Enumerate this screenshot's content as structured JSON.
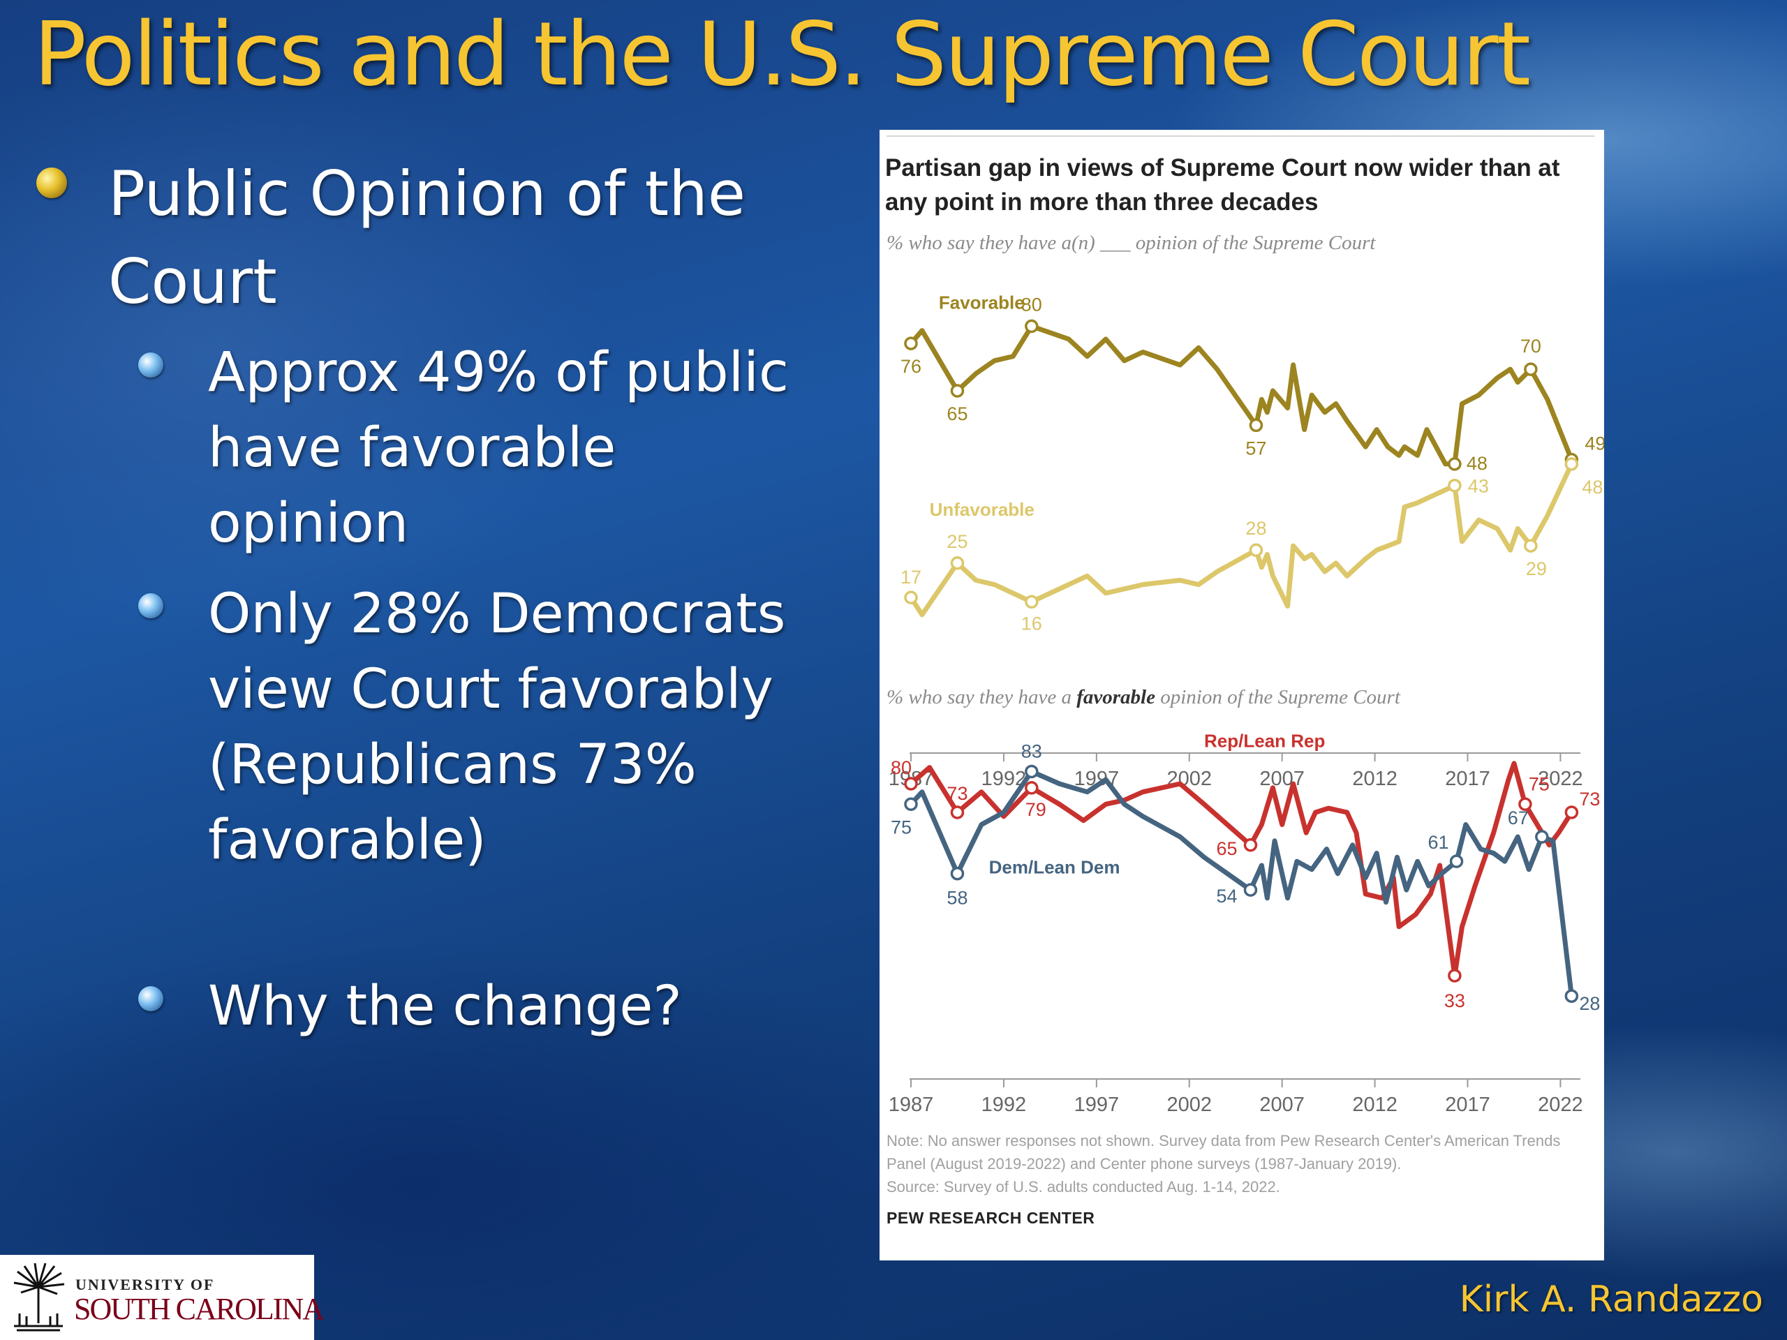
{
  "slide": {
    "title": "Politics and the U.S. Supreme Court",
    "bullets": {
      "main": "Public Opinion of the Court",
      "sub": [
        "Approx 49% of public have favorable opinion",
        "Only 28% Democrats view Court favorably (Republicans 73% favorable)",
        "Why the change?"
      ]
    },
    "author": "Kirk A. Randazzo",
    "logo": {
      "line1": "UNIVERSITY OF",
      "line2": "SOUTH CAROLINA"
    }
  },
  "colors": {
    "title": "#f7c531",
    "favorable": "#9c8420",
    "unfavorable": "#dcc76a",
    "rep": "#c8322e",
    "dem": "#456480"
  },
  "figure": {
    "title": "Partisan gap in views of Supreme Court now wider than at any point in more than three decades",
    "note": "Note: No answer responses not shown. Survey data from Pew Research Center's American Trends Panel (August 2019-2022) and Center phone surveys (1987-January 2019).",
    "source": "Source: Survey of U.S. adults conducted Aug. 1-14, 2022.",
    "org": "PEW RESEARCH CENTER"
  },
  "chart_data": [
    {
      "type": "line",
      "title": "Partisan gap in views of Supreme Court now wider than at any point in more than three decades",
      "subtitle": "% who say they have a(n) ___ opinion of the Supreme Court",
      "x_ticks": [
        "1987",
        "1992",
        "1997",
        "2002",
        "2007",
        "2012",
        "2017",
        "2022"
      ],
      "xlim": [
        1987,
        2023
      ],
      "ylim": [
        0,
        100
      ],
      "series": [
        {
          "name": "Favorable",
          "color": "#9c8420",
          "points": [
            [
              1987,
              76
            ],
            [
              1987.6,
              79
            ],
            [
              1989.5,
              65
            ],
            [
              1990.5,
              69
            ],
            [
              1991.5,
              72
            ],
            [
              1992.5,
              73
            ],
            [
              1993.5,
              80
            ],
            [
              1995.5,
              77
            ],
            [
              1996.5,
              73
            ],
            [
              1997.5,
              77
            ],
            [
              1998.5,
              72
            ],
            [
              1999.5,
              74
            ],
            [
              2001.5,
              71
            ],
            [
              2002.5,
              75
            ],
            [
              2003.5,
              70
            ],
            [
              2005.6,
              57
            ],
            [
              2005.9,
              63
            ],
            [
              2006.2,
              60
            ],
            [
              2006.5,
              65
            ],
            [
              2007.3,
              61
            ],
            [
              2007.6,
              71
            ],
            [
              2008.2,
              56
            ],
            [
              2008.6,
              64
            ],
            [
              2009.3,
              60
            ],
            [
              2009.9,
              62
            ],
            [
              2010.5,
              58
            ],
            [
              2011.5,
              52
            ],
            [
              2012.1,
              56
            ],
            [
              2012.7,
              52
            ],
            [
              2013.3,
              50
            ],
            [
              2013.6,
              52
            ],
            [
              2014.3,
              50
            ],
            [
              2014.8,
              56
            ],
            [
              2015.8,
              48
            ],
            [
              2016.3,
              48
            ],
            [
              2016.7,
              62
            ],
            [
              2017.6,
              64
            ],
            [
              2018.6,
              68
            ],
            [
              2019.3,
              70
            ],
            [
              2019.7,
              67
            ],
            [
              2020.4,
              70
            ],
            [
              2021.3,
              63
            ],
            [
              2022.6,
              49
            ]
          ],
          "labels": [
            {
              "x": 1987,
              "y": 76,
              "text": "76"
            },
            {
              "x": 1989.5,
              "y": 65,
              "text": "65"
            },
            {
              "x": 1993.5,
              "y": 80,
              "text": "80"
            },
            {
              "x": 2005.6,
              "y": 57,
              "text": "57"
            },
            {
              "x": 2016.3,
              "y": 48,
              "text": "48"
            },
            {
              "x": 2020.4,
              "y": 70,
              "text": "70"
            },
            {
              "x": 2022.6,
              "y": 49,
              "text": "49"
            }
          ]
        },
        {
          "name": "Unfavorable",
          "color": "#dcc76a",
          "points": [
            [
              1987,
              17
            ],
            [
              1987.6,
              13
            ],
            [
              1989.5,
              25
            ],
            [
              1990.5,
              21
            ],
            [
              1991.5,
              20
            ],
            [
              1992.5,
              18
            ],
            [
              1993.5,
              16
            ],
            [
              1995.5,
              20
            ],
            [
              1996.5,
              22
            ],
            [
              1997.5,
              18
            ],
            [
              1998.5,
              19
            ],
            [
              1999.5,
              20
            ],
            [
              2001.5,
              21
            ],
            [
              2002.5,
              20
            ],
            [
              2003.5,
              23
            ],
            [
              2005.6,
              28
            ],
            [
              2005.9,
              24
            ],
            [
              2006.2,
              27
            ],
            [
              2006.5,
              22
            ],
            [
              2007.3,
              15
            ],
            [
              2007.6,
              29
            ],
            [
              2008.2,
              26
            ],
            [
              2008.6,
              27
            ],
            [
              2009.3,
              23
            ],
            [
              2009.9,
              25
            ],
            [
              2010.5,
              22
            ],
            [
              2011.5,
              26
            ],
            [
              2012.1,
              28
            ],
            [
              2012.7,
              29
            ],
            [
              2013.3,
              30
            ],
            [
              2013.6,
              38
            ],
            [
              2014.3,
              39
            ],
            [
              2014.8,
              40
            ],
            [
              2015.8,
              42
            ],
            [
              2016.3,
              43
            ],
            [
              2016.7,
              30
            ],
            [
              2017.6,
              35
            ],
            [
              2018.6,
              33
            ],
            [
              2019.3,
              28
            ],
            [
              2019.7,
              33
            ],
            [
              2020.4,
              29
            ],
            [
              2021.3,
              36
            ],
            [
              2022.6,
              48
            ]
          ],
          "labels": [
            {
              "x": 1987,
              "y": 17,
              "text": "17"
            },
            {
              "x": 1989.5,
              "y": 25,
              "text": "25"
            },
            {
              "x": 1993.5,
              "y": 16,
              "text": "16"
            },
            {
              "x": 2005.6,
              "y": 28,
              "text": "28"
            },
            {
              "x": 2016.3,
              "y": 43,
              "text": "43"
            },
            {
              "x": 2020.4,
              "y": 29,
              "text": "29"
            },
            {
              "x": 2022.6,
              "y": 48,
              "text": "48"
            }
          ]
        }
      ],
      "series_labels": [
        {
          "text": "Favorable",
          "x": 1988.5,
          "y": 84,
          "series": 0
        },
        {
          "text": "Unfavorable",
          "x": 1988,
          "y": 36,
          "series": 1
        }
      ]
    },
    {
      "type": "line",
      "subtitle_pre": "% who say they have a ",
      "subtitle_bold": "favorable",
      "subtitle_post": " opinion of the Supreme Court",
      "x_ticks": [
        "1987",
        "1992",
        "1997",
        "2002",
        "2007",
        "2012",
        "2017",
        "2022"
      ],
      "xlim": [
        1987,
        2023
      ],
      "ylim": [
        0,
        100
      ],
      "series": [
        {
          "name": "Rep/Lean Rep",
          "color": "#c8322e",
          "points": [
            [
              1987,
              80
            ],
            [
              1988,
              84
            ],
            [
              1989.5,
              73
            ],
            [
              1990.8,
              78
            ],
            [
              1992,
              72
            ],
            [
              1993.5,
              79
            ],
            [
              1995,
              75
            ],
            [
              1996.3,
              71
            ],
            [
              1997.5,
              75
            ],
            [
              1998.5,
              76
            ],
            [
              1999.5,
              78
            ],
            [
              2001.5,
              80
            ],
            [
              2002.8,
              75
            ],
            [
              2005.3,
              65
            ],
            [
              2005.9,
              70
            ],
            [
              2006.5,
              79
            ],
            [
              2007,
              70
            ],
            [
              2007.6,
              80
            ],
            [
              2008.3,
              68
            ],
            [
              2008.8,
              73
            ],
            [
              2009.5,
              74
            ],
            [
              2010.5,
              73
            ],
            [
              2011,
              68
            ],
            [
              2011.5,
              53
            ],
            [
              2012.4,
              52
            ],
            [
              2013,
              57
            ],
            [
              2013.3,
              45
            ],
            [
              2014.2,
              48
            ],
            [
              2015,
              53
            ],
            [
              2015.5,
              60
            ],
            [
              2016.3,
              33
            ],
            [
              2016.7,
              45
            ],
            [
              2017.4,
              55
            ],
            [
              2018.4,
              68
            ],
            [
              2019.2,
              81
            ],
            [
              2019.5,
              85
            ],
            [
              2020.1,
              75
            ],
            [
              2021.4,
              65
            ],
            [
              2021.9,
              68
            ],
            [
              2022.6,
              73
            ]
          ],
          "labels": [
            {
              "x": 1987,
              "y": 80,
              "text": "80"
            },
            {
              "x": 1989.5,
              "y": 73,
              "text": "73"
            },
            {
              "x": 1993.5,
              "y": 79,
              "text": "79"
            },
            {
              "x": 2005.3,
              "y": 65,
              "text": "65"
            },
            {
              "x": 2016.3,
              "y": 33,
              "text": "33"
            },
            {
              "x": 2020.1,
              "y": 75,
              "text": "75"
            },
            {
              "x": 2022.6,
              "y": 73,
              "text": "73"
            }
          ]
        },
        {
          "name": "Dem/Lean Dem",
          "color": "#456480",
          "points": [
            [
              1987,
              75
            ],
            [
              1987.6,
              78
            ],
            [
              1989.5,
              58
            ],
            [
              1990.8,
              70
            ],
            [
              1992,
              73
            ],
            [
              1993.5,
              83
            ],
            [
              1995,
              80
            ],
            [
              1996.5,
              78
            ],
            [
              1997.5,
              81
            ],
            [
              1998.5,
              75
            ],
            [
              1999.5,
              72
            ],
            [
              2001.5,
              67
            ],
            [
              2002.8,
              62
            ],
            [
              2005.3,
              54
            ],
            [
              2005.9,
              60
            ],
            [
              2006.2,
              52
            ],
            [
              2006.6,
              66
            ],
            [
              2007.3,
              52
            ],
            [
              2007.8,
              61
            ],
            [
              2008.6,
              59
            ],
            [
              2009.4,
              64
            ],
            [
              2010,
              58
            ],
            [
              2010.8,
              65
            ],
            [
              2011.5,
              57
            ],
            [
              2012.1,
              63
            ],
            [
              2012.6,
              51
            ],
            [
              2013.2,
              62
            ],
            [
              2013.7,
              54
            ],
            [
              2014.3,
              61
            ],
            [
              2014.9,
              55
            ],
            [
              2015.6,
              58
            ],
            [
              2016.4,
              61
            ],
            [
              2016.9,
              70
            ],
            [
              2017.7,
              64
            ],
            [
              2018.4,
              63
            ],
            [
              2019,
              61
            ],
            [
              2019.7,
              67
            ],
            [
              2020.3,
              59
            ],
            [
              2021,
              67
            ],
            [
              2021.6,
              66
            ],
            [
              2022.6,
              28
            ]
          ],
          "labels": [
            {
              "x": 1987,
              "y": 75,
              "text": "75"
            },
            {
              "x": 1989.5,
              "y": 58,
              "text": "58"
            },
            {
              "x": 1993.5,
              "y": 83,
              "text": "83"
            },
            {
              "x": 2005.3,
              "y": 54,
              "text": "54"
            },
            {
              "x": 2016.4,
              "y": 61,
              "text": "61"
            },
            {
              "x": 2021,
              "y": 67,
              "text": "67"
            },
            {
              "x": 2022.6,
              "y": 28,
              "text": "28"
            }
          ]
        }
      ],
      "series_labels": [
        {
          "text": "Rep/Lean Rep",
          "x": 2002.8,
          "y": 89,
          "series": 0
        },
        {
          "text": "Dem/Lean Dem",
          "x": 1991.2,
          "y": 58,
          "series": 1
        }
      ]
    }
  ]
}
